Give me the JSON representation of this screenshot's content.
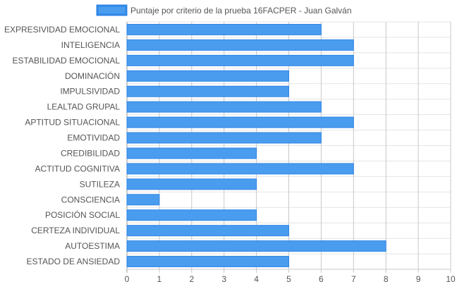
{
  "chart_data": {
    "type": "bar",
    "orientation": "horizontal",
    "title": "",
    "xlabel": "",
    "ylabel": "",
    "legend_position": "top",
    "grid": true,
    "xlim": [
      0,
      10
    ],
    "x_ticks": [
      0,
      1,
      2,
      3,
      4,
      5,
      6,
      7,
      8,
      9,
      10
    ],
    "categories": [
      "EXPRESIVIDAD EMOCIONAL",
      "INTELIGENCIA",
      "ESTABILIDAD EMOCIONAL",
      "DOMINACIÓN",
      "IMPULSIVIDAD",
      "LEALTAD GRUPAL",
      "APTITUD SITUACIONAL",
      "EMOTIVIDAD",
      "CREDIBILIDAD",
      "ACTITUD COGNITIVA",
      "SUTILEZA",
      "CONSCIENCIA",
      "POSICIÓN SOCIAL",
      "CERTEZA INDIVIDUAL",
      "AUTOESTIMA",
      "ESTADO DE ANSIEDAD"
    ],
    "series": [
      {
        "name": "Puntaje por criterio de la prueba 16FACPER - Juan Galván",
        "color": "#4a9cee",
        "border_color": "#2f86e6",
        "values": [
          6,
          7,
          7,
          5,
          5,
          6,
          7,
          6,
          4,
          7,
          4,
          1,
          4,
          5,
          8,
          5
        ]
      }
    ]
  }
}
